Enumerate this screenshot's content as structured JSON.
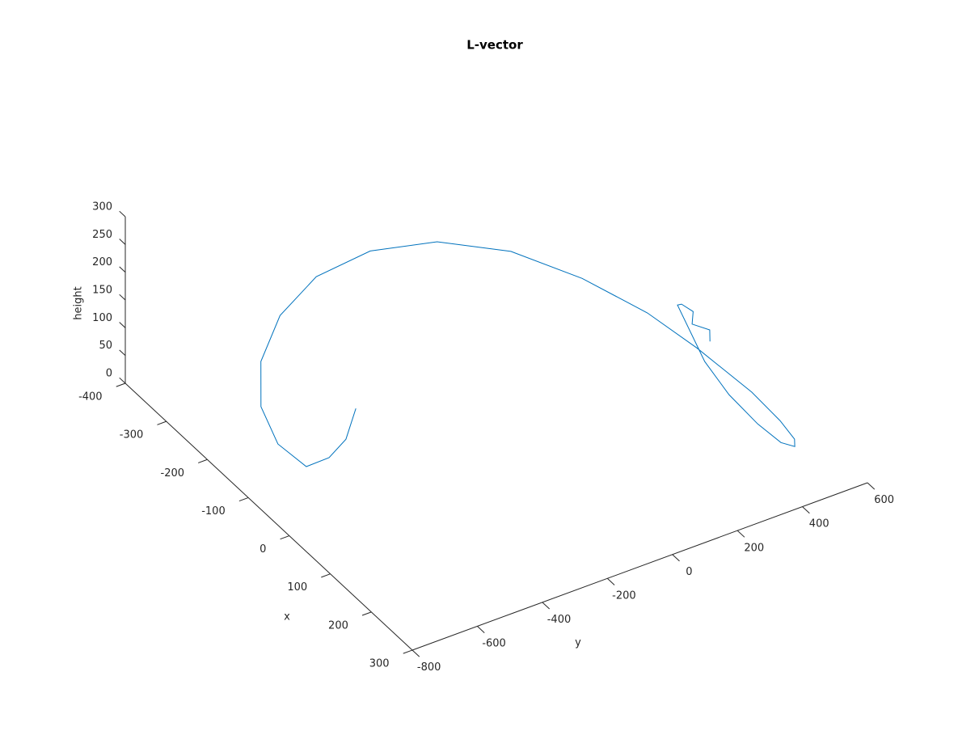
{
  "chart_data": {
    "type": "line3d",
    "title": "L-vector",
    "xlabel": "x",
    "ylabel": "y",
    "zlabel": "height",
    "color": "#0072bd",
    "x": [
      -89,
      -38,
      -15,
      -14,
      -76,
      -158,
      -243,
      -316,
      -364,
      -375,
      -346,
      -277,
      -177,
      -67,
      33,
      154,
      227,
      272,
      286,
      269,
      218,
      143,
      64,
      -61,
      -60,
      -38,
      -15,
      8,
      30
    ],
    "y": [
      -483,
      -578,
      -659,
      -730,
      -739,
      -688,
      -581,
      -430,
      -258,
      -78,
      91,
      231,
      324,
      386,
      412,
      428,
      423,
      411,
      394,
      373,
      366,
      372,
      397,
      471,
      482,
      490,
      458,
      483,
      456
    ],
    "z": [
      100,
      100,
      100,
      100,
      100,
      100,
      100,
      100,
      100,
      100,
      100,
      100,
      100,
      100,
      100,
      100,
      100,
      100,
      100,
      100,
      100,
      100,
      100,
      100,
      100,
      100,
      100,
      100,
      100
    ],
    "xlim": [
      -400,
      300
    ],
    "xticks": [
      -400,
      -300,
      -200,
      -100,
      0,
      100,
      200,
      300
    ],
    "ylim": [
      -800,
      600
    ],
    "yticks": [
      -800,
      -600,
      -400,
      -200,
      0,
      200,
      400,
      600
    ],
    "zlim": [
      0,
      300
    ],
    "zticks": [
      0,
      50,
      100,
      150,
      200,
      250,
      300
    ]
  }
}
